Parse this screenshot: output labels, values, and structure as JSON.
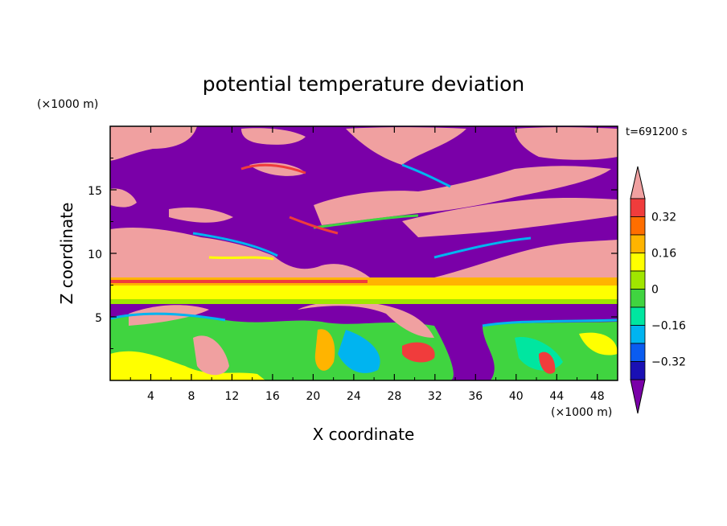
{
  "chart_data": {
    "type": "heatmap",
    "title": "potential temperature deviation",
    "xlabel": "X coordinate",
    "ylabel": "Z coordinate",
    "x_unit": "(×1000 m)",
    "y_unit": "(×1000 m)",
    "time_label": "t=691200 s",
    "xlim": [
      0,
      50
    ],
    "ylim": [
      0,
      20
    ],
    "x_ticks": [
      "4",
      "8",
      "12",
      "16",
      "20",
      "24",
      "28",
      "32",
      "36",
      "40",
      "44",
      "48"
    ],
    "y_ticks": [
      "5",
      "10",
      "15"
    ],
    "colorbar": {
      "levels": [
        -0.4,
        -0.32,
        -0.24,
        -0.16,
        -0.08,
        0,
        0.08,
        0.16,
        0.24,
        0.32,
        0.4
      ],
      "tick_labels": [
        "0.32",
        "0.16",
        "0",
        "−0.16",
        "−0.32"
      ],
      "colors": [
        "#7a00a8",
        "#1a10b4",
        "#0a5cf0",
        "#00b4f0",
        "#00e6a0",
        "#40d440",
        "#a0e600",
        "#ffff00",
        "#ffb400",
        "#ff6e00",
        "#f03c3c",
        "#f0a0a0"
      ],
      "extend": "both"
    }
  }
}
